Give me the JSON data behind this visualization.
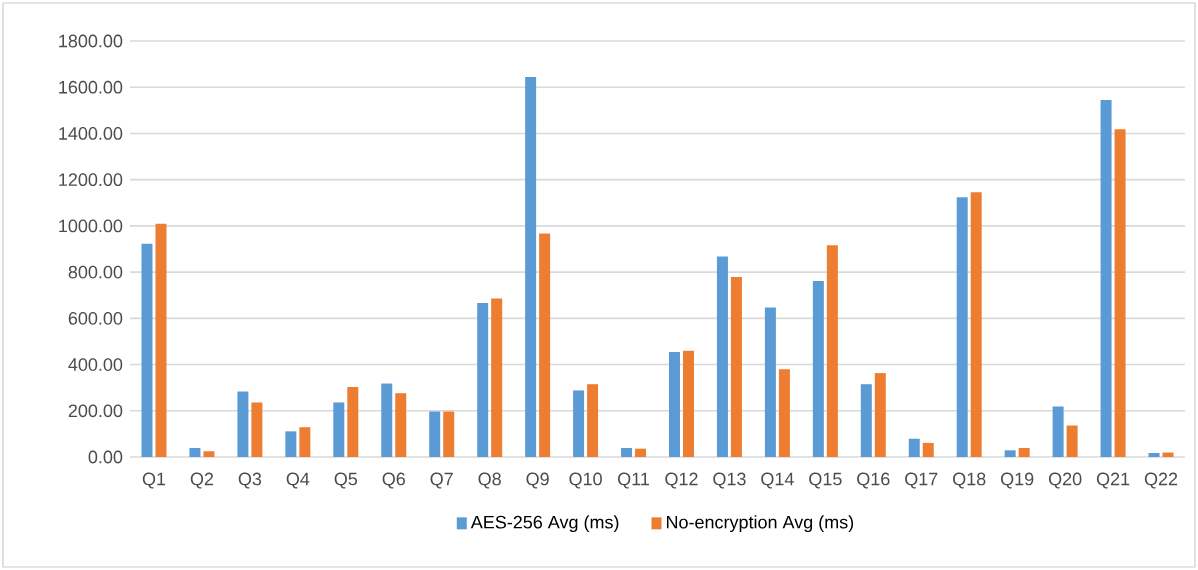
{
  "chart_data": {
    "type": "bar",
    "categories": [
      "Q1",
      "Q2",
      "Q3",
      "Q4",
      "Q5",
      "Q6",
      "Q7",
      "Q8",
      "Q9",
      "Q10",
      "Q11",
      "Q12",
      "Q13",
      "Q14",
      "Q15",
      "Q16",
      "Q17",
      "Q18",
      "Q19",
      "Q20",
      "Q21",
      "Q22"
    ],
    "series": [
      {
        "name": "AES-256 Avg (ms)",
        "color": "#5b9bd5",
        "values": [
          923,
          39,
          283,
          111,
          236,
          318,
          197,
          666,
          1644,
          288,
          39,
          454,
          868,
          647,
          762,
          315,
          79,
          1124,
          29,
          218,
          1545,
          17
        ]
      },
      {
        "name": "No-encryption Avg (ms)",
        "color": "#ed7d31",
        "values": [
          1009,
          25,
          236,
          129,
          303,
          276,
          197,
          686,
          967,
          315,
          36,
          460,
          779,
          380,
          916,
          363,
          61,
          1146,
          39,
          136,
          1418,
          20
        ]
      }
    ],
    "ylim": [
      0,
      1800
    ],
    "yticks": [
      {
        "value": 0,
        "label": "0.00"
      },
      {
        "value": 200,
        "label": "200.00"
      },
      {
        "value": 400,
        "label": "400.00"
      },
      {
        "value": 600,
        "label": "600.00"
      },
      {
        "value": 800,
        "label": "800.00"
      },
      {
        "value": 1000,
        "label": "1000.00"
      },
      {
        "value": 1200,
        "label": "1200.00"
      },
      {
        "value": 1400,
        "label": "1400.00"
      },
      {
        "value": 1600,
        "label": "1600.00"
      },
      {
        "value": 1800,
        "label": "1800.00"
      }
    ],
    "grid": "y",
    "legend": "bottom"
  }
}
